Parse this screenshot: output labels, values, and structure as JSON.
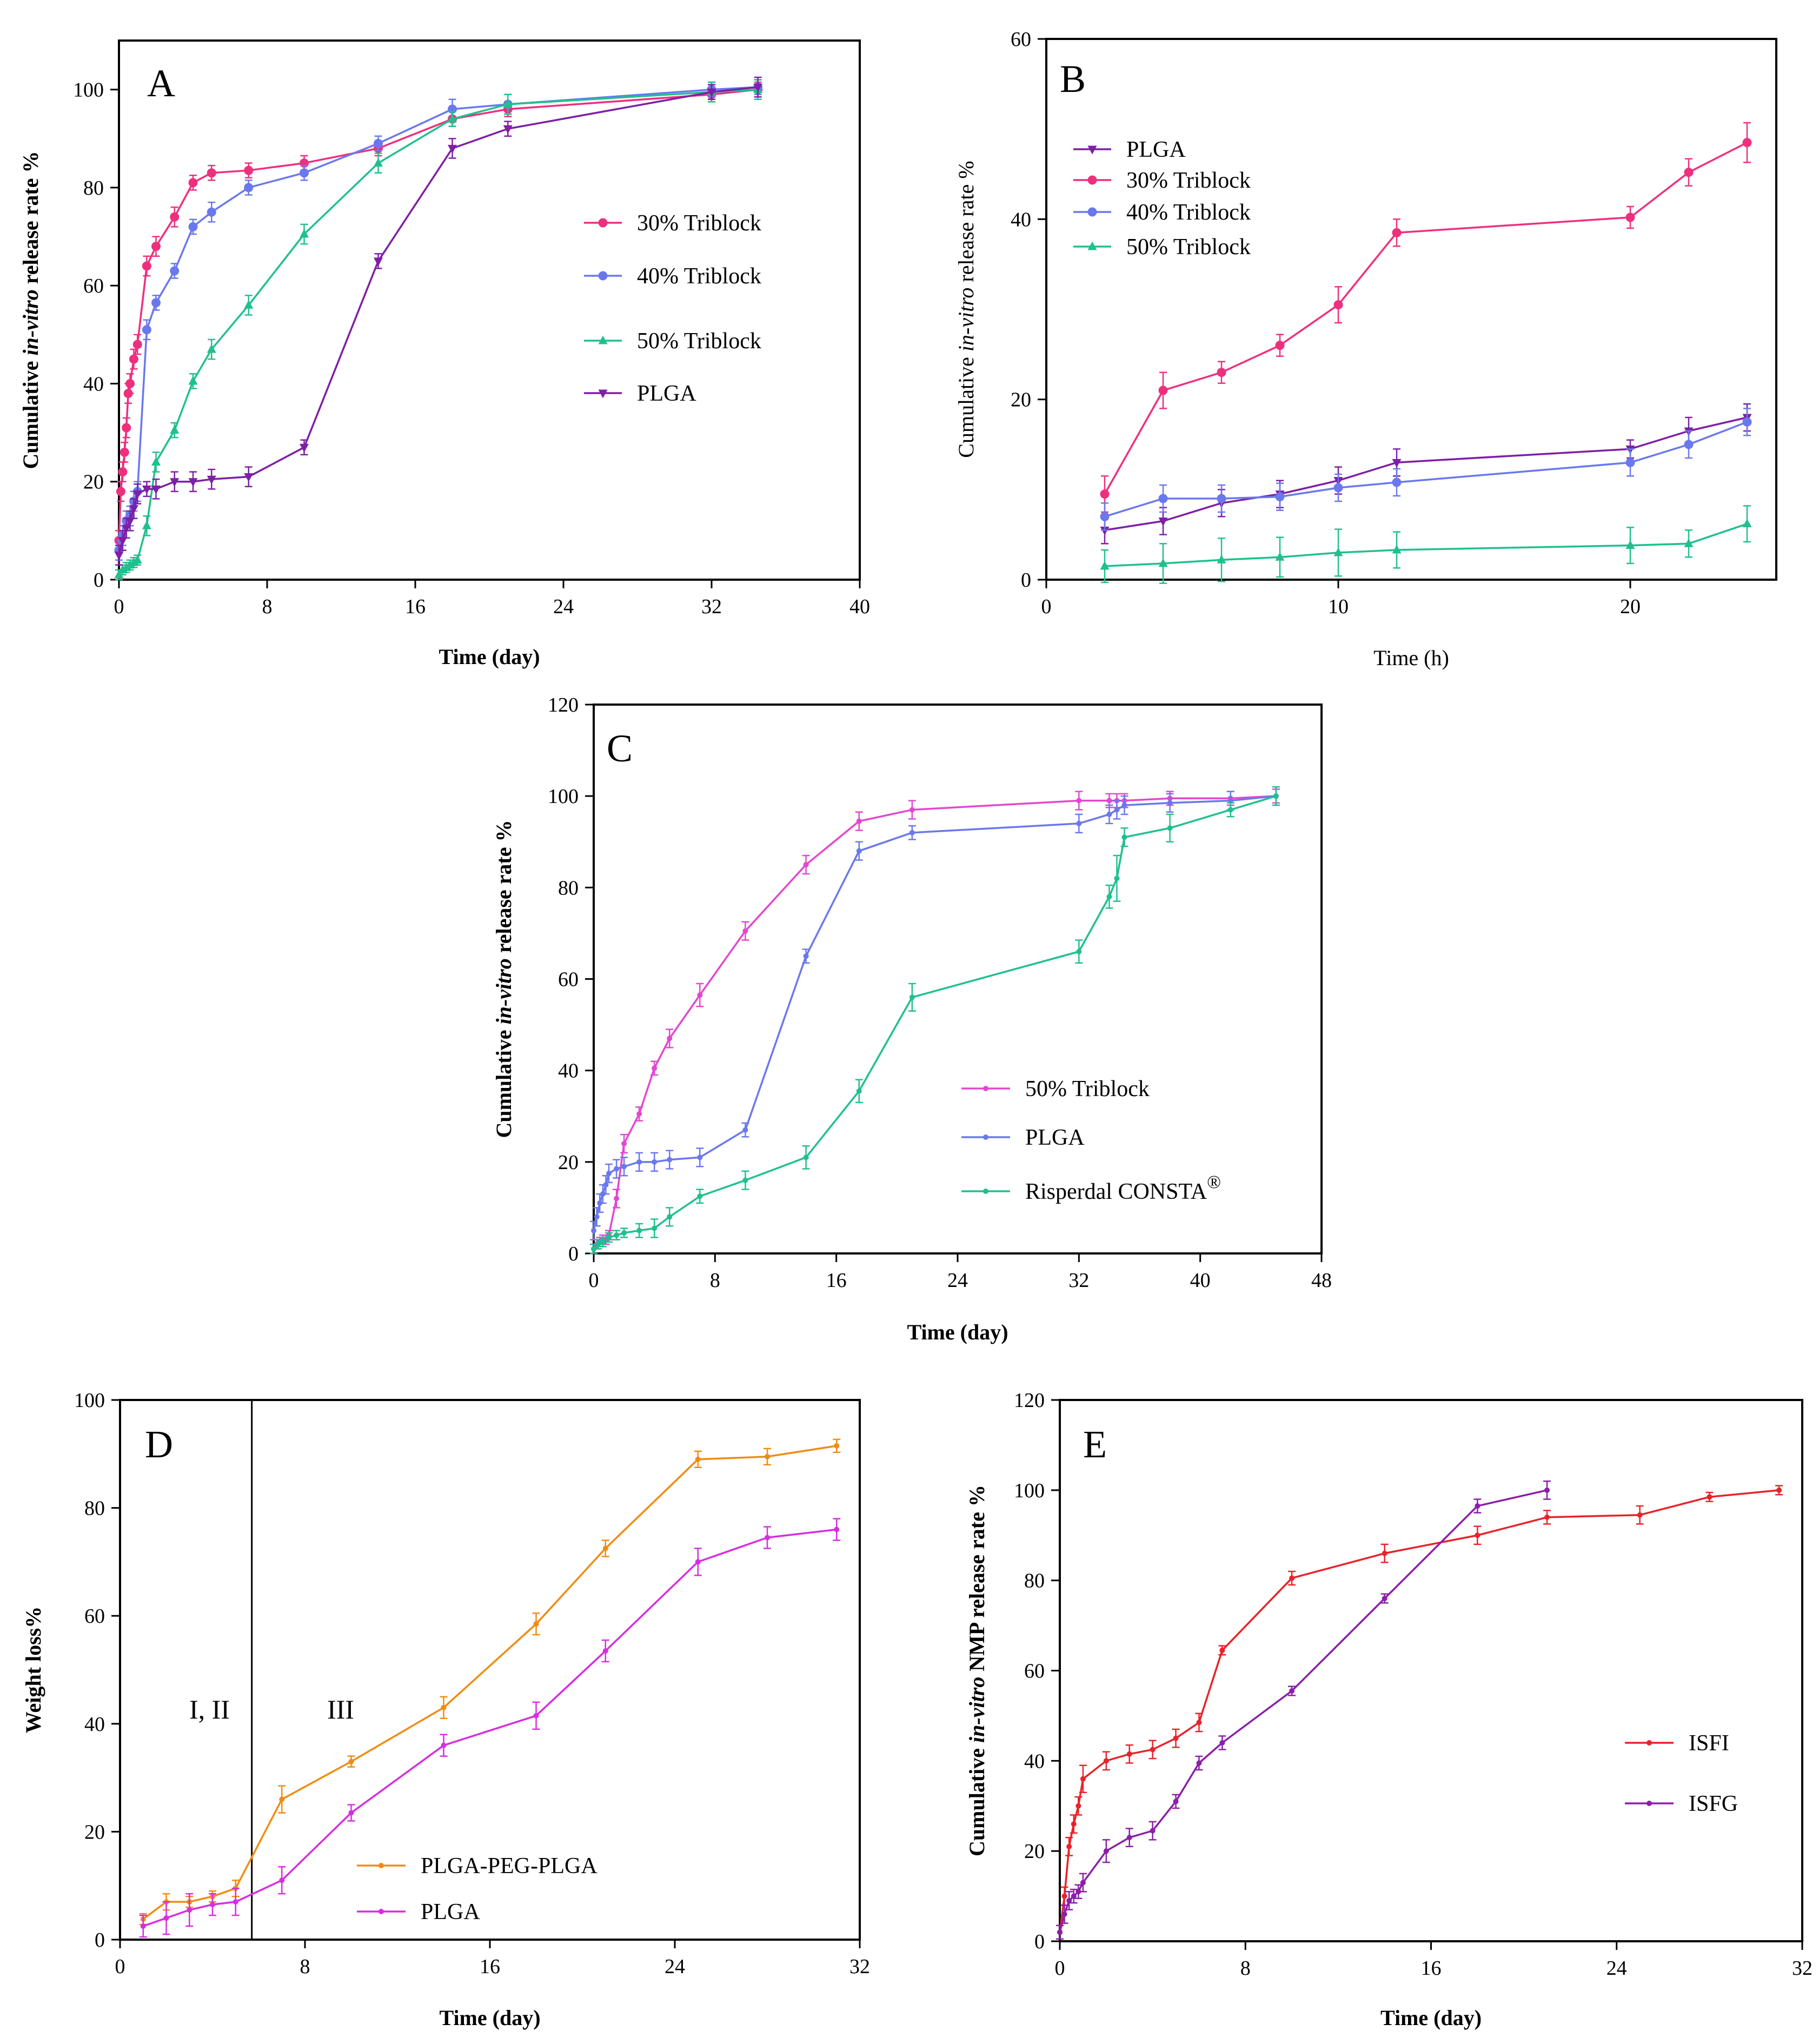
{
  "charts": [
    {
      "id": "A",
      "type": "line",
      "panel_label": "A",
      "xlabel": "Time (day)",
      "ylabel_parts": [
        "Cumulative ",
        "in-vitro",
        " release rate %"
      ],
      "ylabel_bold": true,
      "xlabel_bold": true,
      "xlim": [
        0,
        40
      ],
      "ylim": [
        0,
        110
      ],
      "xticks": [
        0,
        8,
        16,
        24,
        32,
        40
      ],
      "yticks": [
        0,
        20,
        40,
        60,
        80,
        100
      ],
      "legend_order": [
        0,
        1,
        2,
        3
      ],
      "series": [
        {
          "name": "30% Triblock",
          "color": "#ee2f7e",
          "marker": "circle",
          "x": [
            0,
            0.1,
            0.2,
            0.3,
            0.4,
            0.5,
            0.6,
            0.8,
            1,
            1.5,
            2,
            3,
            4,
            5,
            7,
            10,
            14,
            18,
            21,
            32,
            34.5
          ],
          "y": [
            8,
            18,
            22,
            26,
            31,
            38,
            40,
            45,
            48,
            64,
            68,
            74,
            81,
            83,
            83.5,
            85,
            88,
            94,
            96,
            99,
            100
          ],
          "err": [
            2,
            2,
            2,
            2,
            2,
            2,
            2,
            2,
            2,
            2,
            2,
            2,
            1.5,
            1.5,
            1.5,
            1.5,
            1.5,
            1.5,
            1.5,
            1.5,
            1.5
          ]
        },
        {
          "name": "40% Triblock",
          "color": "#6a78ee",
          "marker": "circle",
          "x": [
            0,
            0.2,
            0.4,
            0.6,
            0.8,
            1,
            1.5,
            2,
            3,
            4,
            5,
            7,
            10,
            14,
            18,
            21,
            32,
            34.5
          ],
          "y": [
            6,
            9,
            12,
            13,
            16,
            18,
            51,
            56.5,
            63,
            72,
            75,
            80,
            83,
            89,
            96,
            97,
            100,
            100.5
          ],
          "err": [
            2,
            2,
            2,
            2,
            2,
            2,
            2,
            1.5,
            1.5,
            1.5,
            2,
            1.5,
            1.5,
            1.5,
            2,
            2,
            1.5,
            1.5
          ]
        },
        {
          "name": "50% Triblock",
          "color": "#1fc08e",
          "marker": "triangle",
          "x": [
            0,
            0.2,
            0.4,
            0.6,
            0.8,
            1,
            1.5,
            2,
            3,
            4,
            5,
            7,
            10,
            14,
            18,
            21,
            32,
            34.5
          ],
          "y": [
            1,
            2,
            2.5,
            3,
            3.5,
            4,
            11,
            24,
            30.5,
            40.5,
            47,
            56,
            70.5,
            85,
            94,
            97,
            99.5,
            100
          ],
          "err": [
            1,
            1,
            1,
            1,
            1,
            1,
            2,
            2,
            1.5,
            1.5,
            2,
            2,
            2,
            2,
            1.5,
            2,
            2,
            2
          ]
        },
        {
          "name": "PLGA",
          "color": "#7e1fa6",
          "marker": "triangle-down",
          "x": [
            0,
            0.2,
            0.4,
            0.6,
            0.8,
            1,
            1.5,
            2,
            3,
            4,
            5,
            7,
            10,
            14,
            18,
            21,
            32,
            34.5
          ],
          "y": [
            5,
            8,
            10.5,
            12,
            14.5,
            17.5,
            18.5,
            18.5,
            20,
            20,
            20.5,
            21,
            27,
            65,
            88,
            92,
            99.5,
            100.5
          ],
          "err": [
            2,
            2,
            2,
            2,
            2,
            2,
            1.5,
            2,
            2,
            2,
            2,
            2,
            1.5,
            1.5,
            2,
            1.5,
            1.5,
            2
          ]
        }
      ]
    },
    {
      "id": "B",
      "type": "line",
      "panel_label": "B",
      "xlabel": "Time (h)",
      "ylabel_parts": [
        "Cumulative ",
        "in-vitro",
        " release rate %"
      ],
      "ylabel_bold": false,
      "xlabel_bold": false,
      "xlim": [
        0,
        25
      ],
      "ylim": [
        0,
        60
      ],
      "xticks": [
        0,
        10,
        20
      ],
      "yticks": [
        0,
        20,
        40,
        60
      ],
      "legend_order": [
        0,
        1,
        2,
        3
      ],
      "series": [
        {
          "name": "PLGA",
          "color": "#7e1fa6",
          "marker": "triangle-down",
          "x": [
            2,
            4,
            6,
            8,
            10,
            12,
            20,
            22,
            24
          ],
          "y": [
            5.5,
            6.5,
            8.5,
            9.5,
            11,
            13,
            14.5,
            16.5,
            18
          ],
          "err": [
            1.5,
            1.5,
            1.5,
            1.5,
            1.5,
            1.5,
            1,
            1.5,
            1.5
          ]
        },
        {
          "name": "30% Triblock",
          "color": "#ee2f7e",
          "marker": "circle",
          "x": [
            2,
            4,
            6,
            8,
            10,
            12,
            20,
            22,
            24
          ],
          "y": [
            9.5,
            21,
            23,
            26,
            30.5,
            38.5,
            40.2,
            45.2,
            48.5
          ],
          "err": [
            2,
            2,
            1.2,
            1.2,
            2,
            1.5,
            1.2,
            1.5,
            2.2
          ]
        },
        {
          "name": "40% Triblock",
          "color": "#6a78ee",
          "marker": "circle",
          "x": [
            2,
            4,
            6,
            8,
            10,
            12,
            20,
            22,
            24
          ],
          "y": [
            7,
            9,
            9,
            9.2,
            10.2,
            10.8,
            13,
            15,
            17.5
          ],
          "err": [
            1.5,
            1.5,
            1.5,
            1.5,
            1.5,
            1.5,
            1.5,
            1.5,
            1.5
          ]
        },
        {
          "name": "50% Triblock",
          "color": "#1fc08e",
          "marker": "triangle",
          "x": [
            2,
            4,
            6,
            8,
            10,
            12,
            20,
            22,
            24
          ],
          "y": [
            1.5,
            1.8,
            2.2,
            2.5,
            3,
            3.3,
            3.8,
            4,
            6.2
          ],
          "err": [
            1.8,
            2.2,
            2.4,
            2.2,
            2.6,
            2,
            2,
            1.5,
            2
          ]
        }
      ]
    },
    {
      "id": "C",
      "type": "line",
      "panel_label": "C",
      "xlabel": "Time (day)",
      "ylabel_parts": [
        "Cumulative ",
        "in-vitro",
        " release rate %"
      ],
      "ylabel_bold": true,
      "xlabel_bold": true,
      "xlim": [
        0,
        48
      ],
      "ylim": [
        0,
        120
      ],
      "xticks": [
        0,
        8,
        16,
        24,
        32,
        40,
        48
      ],
      "yticks": [
        0,
        20,
        40,
        60,
        80,
        100,
        120
      ],
      "legend_order": [
        0,
        1,
        2
      ],
      "series": [
        {
          "name": "50% Triblock",
          "color": "#e347d0",
          "marker": "dot",
          "x": [
            0,
            0.2,
            0.4,
            0.6,
            0.8,
            1,
            1.5,
            2,
            3,
            4,
            5,
            7,
            10,
            14,
            17.5,
            21,
            32,
            34,
            34.5,
            35,
            38,
            42,
            45
          ],
          "y": [
            1,
            2,
            2.5,
            3,
            3,
            4,
            12,
            24,
            30.5,
            40.5,
            47,
            56.5,
            70.5,
            85,
            94.5,
            97,
            99,
            99,
            99,
            99,
            99.5,
            99.5,
            100
          ],
          "err": [
            1,
            1,
            1,
            1,
            1,
            1,
            2,
            2,
            1.5,
            1.5,
            2,
            2.5,
            2,
            2,
            2,
            2,
            2,
            1.5,
            1.5,
            1.5,
            1.5,
            1.5,
            1.5
          ]
        },
        {
          "name": "PLGA",
          "color": "#6a78ee",
          "marker": "dot",
          "x": [
            0,
            0.2,
            0.4,
            0.6,
            0.8,
            1,
            1.5,
            2,
            3,
            4,
            5,
            7,
            10,
            14,
            17.5,
            21,
            32,
            34,
            34.5,
            35,
            38,
            42,
            45
          ],
          "y": [
            5,
            8,
            11,
            13,
            15,
            17.5,
            18.5,
            19,
            20,
            20,
            20.5,
            21,
            27,
            65,
            88,
            92,
            94,
            96,
            97,
            98,
            98.5,
            99,
            100
          ],
          "err": [
            2,
            2,
            2,
            2,
            2,
            2,
            2,
            2,
            2,
            2,
            2,
            2,
            1.5,
            1.5,
            2,
            1.5,
            2,
            2,
            2,
            2,
            2,
            2,
            2
          ]
        },
        {
          "name": "Risperdal CONSTA",
          "superscript": "®",
          "color": "#1fc08e",
          "marker": "dot",
          "x": [
            0,
            0.3,
            0.6,
            1,
            1.5,
            2,
            3,
            4,
            5,
            7,
            10,
            14,
            17.5,
            21,
            32,
            34,
            34.5,
            35,
            38,
            42,
            45
          ],
          "y": [
            1,
            2,
            2.5,
            3.5,
            4,
            4.5,
            5,
            5.5,
            8,
            12.5,
            16,
            21,
            35.5,
            56,
            66,
            78,
            82,
            91,
            93,
            97,
            100
          ],
          "err": [
            1,
            1,
            1,
            1,
            1,
            1,
            1.5,
            2,
            2,
            1.5,
            2,
            2.5,
            2.5,
            3,
            2.5,
            2.5,
            5,
            2,
            3,
            1.5,
            2
          ]
        }
      ]
    },
    {
      "id": "D",
      "type": "line",
      "panel_label": "D",
      "xlabel": "Time (day)",
      "ylabel_parts": [
        "Weight loss%"
      ],
      "ylabel_bold": true,
      "xlabel_bold": true,
      "xlim": [
        0,
        32
      ],
      "ylim": [
        0,
        100
      ],
      "xticks": [
        0,
        8,
        16,
        24,
        32
      ],
      "yticks": [
        0,
        20,
        40,
        60,
        80,
        100
      ],
      "vline_x": 5.7,
      "annotations": [
        "I, II",
        "III"
      ],
      "legend_order": [
        0,
        1
      ],
      "series": [
        {
          "name": "PLGA-PEG-PLGA",
          "color": "#f08c12",
          "marker": "dot",
          "x": [
            1,
            2,
            3,
            4,
            5,
            7,
            10,
            14,
            18,
            21,
            25,
            28,
            31
          ],
          "y": [
            3.8,
            7,
            7,
            8,
            9.5,
            26,
            33,
            43,
            58.5,
            72.5,
            89,
            89.5,
            91.5
          ],
          "err": [
            1,
            1.5,
            1,
            1,
            1.5,
            2.5,
            1,
            2,
            2,
            1.5,
            1.5,
            1.5,
            1.2
          ]
        },
        {
          "name": "PLGA",
          "color": "#d62ee0",
          "marker": "dot",
          "x": [
            1,
            2,
            3,
            4,
            5,
            7,
            10,
            14,
            18,
            21,
            25,
            28,
            31
          ],
          "y": [
            2.5,
            4,
            5.5,
            6.5,
            7,
            11,
            23.5,
            36,
            41.5,
            53.5,
            70,
            74.5,
            76
          ],
          "err": [
            2,
            3,
            3,
            2,
            2.5,
            2.5,
            1.5,
            2,
            2.5,
            2,
            2.5,
            2,
            2
          ]
        }
      ]
    },
    {
      "id": "E",
      "type": "line",
      "panel_label": "E",
      "xlabel": "Time (day)",
      "ylabel_parts": [
        "Cumulative ",
        "in-vitro",
        " NMP release rate %"
      ],
      "ylabel_bold": true,
      "xlabel_bold": true,
      "xlim": [
        0,
        32
      ],
      "ylim": [
        0,
        120
      ],
      "xticks": [
        0,
        8,
        16,
        24,
        32
      ],
      "yticks": [
        0,
        20,
        40,
        60,
        80,
        100,
        120
      ],
      "legend_order": [
        0,
        1
      ],
      "series": [
        {
          "name": "ISFI",
          "color": "#e8232a",
          "marker": "dot",
          "x": [
            0,
            0.2,
            0.4,
            0.6,
            0.8,
            1,
            2,
            3,
            4,
            5,
            6,
            7,
            10,
            14,
            18,
            21,
            25,
            28,
            31
          ],
          "y": [
            2,
            10,
            21,
            26,
            30,
            36,
            40,
            41.5,
            42.5,
            45,
            48.5,
            64.5,
            80.5,
            86,
            90,
            94,
            94.5,
            98.5,
            100
          ],
          "err": [
            1.5,
            2,
            2,
            2,
            2,
            3,
            2,
            2,
            2,
            2,
            2,
            1,
            1.5,
            2,
            2,
            1.5,
            2,
            1,
            1
          ]
        },
        {
          "name": "ISFG",
          "color": "#8b1fa8",
          "marker": "dot",
          "x": [
            0,
            0.2,
            0.4,
            0.6,
            0.8,
            1,
            2,
            3,
            4,
            5,
            6,
            7,
            10,
            14,
            18,
            21
          ],
          "y": [
            2,
            6,
            9,
            10,
            11,
            13,
            20,
            23,
            24.5,
            31,
            39.5,
            44,
            55.5,
            76,
            96.5,
            100
          ],
          "err": [
            1.5,
            2,
            2,
            1.5,
            1.5,
            2,
            2.5,
            2,
            2,
            1.5,
            1.5,
            1.5,
            1,
            1,
            1.5,
            2
          ]
        }
      ]
    }
  ]
}
